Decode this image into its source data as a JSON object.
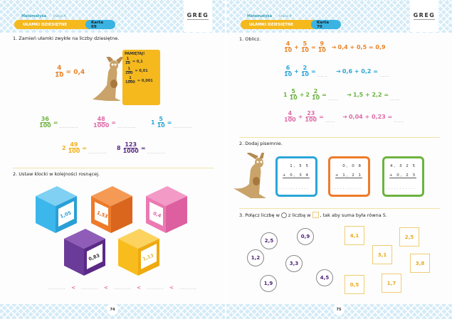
{
  "colors": {
    "orange": "#e8832a",
    "blue": "#2aa6d8",
    "green": "#6cb33f",
    "pink": "#e06aa8",
    "yellow": "#f2b01e",
    "purple": "#5b2a86"
  },
  "logo": "GREG",
  "left": {
    "subject": "Matematyka",
    "grade": "klasa 4",
    "topic": "UŁAMKI DZIESIĘTNE",
    "card": "Karta 69",
    "page_number": "74",
    "task1": {
      "title": "1. Zamień ułamki zwykłe na liczby dziesiętne.",
      "example": {
        "num": "4",
        "den": "10",
        "eq": "= 0,4"
      },
      "remember": {
        "title": "PAMIĘTAJ!",
        "rows": [
          {
            "num": "1",
            "den": "10",
            "val": "= 0,1"
          },
          {
            "num": "1",
            "den": "100",
            "val": "= 0,01"
          },
          {
            "num": "1",
            "den": "1000",
            "val": "= 0,001"
          }
        ]
      },
      "items": [
        {
          "whole": "",
          "num": "36",
          "den": "100"
        },
        {
          "whole": "",
          "num": "48",
          "den": "1000"
        },
        {
          "whole": "1",
          "num": "5",
          "den": "10"
        },
        {
          "whole": "2",
          "num": "49",
          "den": "100"
        },
        {
          "whole": "8",
          "num": "123",
          "den": "1000"
        }
      ],
      "eq": "=",
      "blank": "..........."
    },
    "task2": {
      "title": "2. Ustaw klocki w kolejności rosnącej.",
      "blocks": [
        "1,05",
        "1,53",
        "0,4",
        "0,83",
        "1,13"
      ],
      "lt": "<",
      "blank": ".........."
    }
  },
  "right": {
    "subject": "Matematyka",
    "grade": "klasa 4",
    "topic": "UŁAMKI DZIESIĘTNE",
    "card": "Karta 70",
    "page_number": "75",
    "task1": {
      "title": "1. Oblicz.",
      "plus": "+",
      "eq": "=",
      "arrow": "➔",
      "blank": "......",
      "rows": [
        {
          "a": {
            "w": "",
            "n": "4",
            "d": "10"
          },
          "b": {
            "w": "",
            "n": "5",
            "d": "10"
          },
          "r": {
            "n": "9",
            "d": "10"
          },
          "dec": "0,4 + 0,5 = 0,9"
        },
        {
          "a": {
            "w": "",
            "n": "6",
            "d": "10"
          },
          "b": {
            "w": "",
            "n": "2",
            "d": "10"
          },
          "dec": "0,6 + 0,2 ="
        },
        {
          "a": {
            "w": "1",
            "n": "5",
            "d": "10"
          },
          "b": {
            "w": "2",
            "n": "2",
            "d": "10"
          },
          "dec": "1,5 + 2,2 ="
        },
        {
          "a": {
            "w": "",
            "n": "4",
            "d": "100"
          },
          "b": {
            "w": "",
            "n": "23",
            "d": "100"
          },
          "dec": "0,04 + 0,23 ="
        }
      ]
    },
    "task2": {
      "title": "2. Dodaj pisemnie.",
      "sums": [
        {
          "a": "1, 5 5",
          "b": "+ 0, 3 4"
        },
        {
          "a": "0, 0 8",
          "b": "+ 1, 2 1"
        },
        {
          "a": "4, 3 2 5",
          "b": "+ 0, 2 3"
        }
      ],
      "blank": "............"
    },
    "task3": {
      "title_a": "3. Połącz liczbę w",
      "title_b": "z liczbą w",
      "title_c": ", tak aby suma była równa 5.",
      "circles": [
        "2,5",
        "0,9",
        "1,2",
        "3,3",
        "1,9",
        "4,5"
      ],
      "squares": [
        "4,1",
        "2,5",
        "3,1",
        "3,8",
        "0,5",
        "1,7"
      ]
    }
  }
}
